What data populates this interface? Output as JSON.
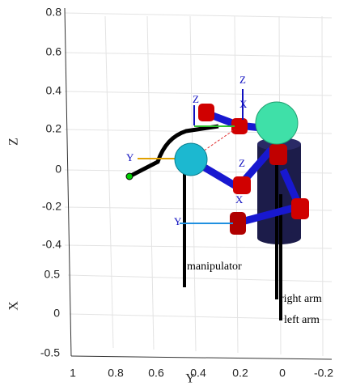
{
  "axes": {
    "z": {
      "label": "Z",
      "ticks": [
        "0.8",
        "0.6",
        "0.4",
        "0.2",
        "0",
        "-0.2",
        "-0.4"
      ]
    },
    "x": {
      "label": "X",
      "ticks": [
        "0.5",
        "0",
        "-0.5"
      ]
    },
    "y": {
      "label": "Y",
      "ticks": [
        "1",
        "0.8",
        "0.6",
        "0.4",
        "0.2",
        "0",
        "-0.2"
      ]
    }
  },
  "labels": {
    "manipulator": "manipulator",
    "right_arm": "right arm",
    "left_arm": "left arm"
  },
  "frame_labels": [
    "Z",
    "X",
    "Z",
    "Y",
    "Z",
    "X",
    "Y"
  ]
}
